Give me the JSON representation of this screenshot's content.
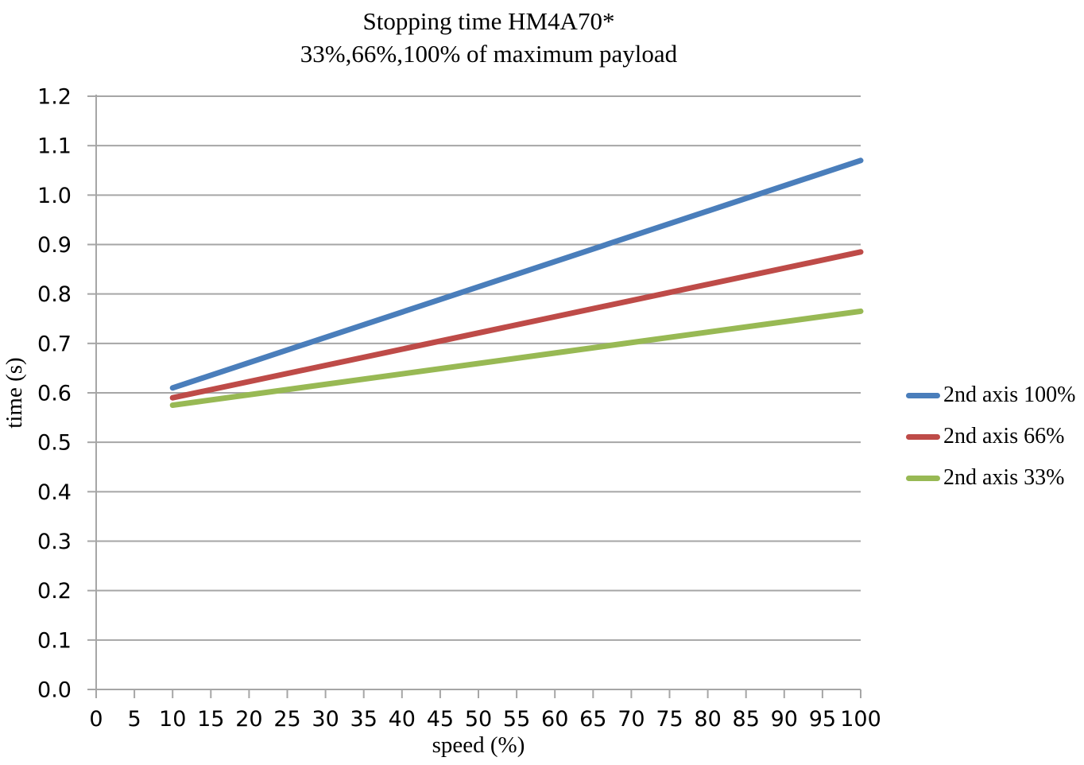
{
  "chart_data": {
    "type": "line",
    "title": "Stopping time HM4A70*",
    "subtitle": "33%,66%,100% of maximum payload",
    "xlabel": "speed (%)",
    "ylabel": "time (s)",
    "x_axis": {
      "min": 0,
      "max": 100,
      "tick_step": 5,
      "ticks": [
        0,
        5,
        10,
        15,
        20,
        25,
        30,
        35,
        40,
        45,
        50,
        55,
        60,
        65,
        70,
        75,
        80,
        85,
        90,
        95,
        100
      ]
    },
    "y_axis": {
      "min": 0.0,
      "max": 1.2,
      "tick_step": 0.1,
      "tick_decimals": 1,
      "ticks": [
        0.0,
        0.1,
        0.2,
        0.3,
        0.4,
        0.5,
        0.6,
        0.7,
        0.8,
        0.9,
        1.0,
        1.1,
        1.2
      ]
    },
    "grid": "horizontal-only",
    "legend_position": "right",
    "series": [
      {
        "name": "2nd axis 100%",
        "color": "#4a7ebb",
        "points": [
          [
            10,
            0.61
          ],
          [
            100,
            1.07
          ]
        ]
      },
      {
        "name": "2nd axis 66%",
        "color": "#be4b48",
        "points": [
          [
            10,
            0.59
          ],
          [
            100,
            0.885
          ]
        ]
      },
      {
        "name": "2nd axis 33%",
        "color": "#98b954",
        "points": [
          [
            10,
            0.575
          ],
          [
            100,
            0.765
          ]
        ]
      }
    ],
    "colors": {
      "gridline": "#a6a6a6",
      "axis": "#a6a6a6",
      "text": "#000000",
      "background": "#ffffff"
    }
  }
}
